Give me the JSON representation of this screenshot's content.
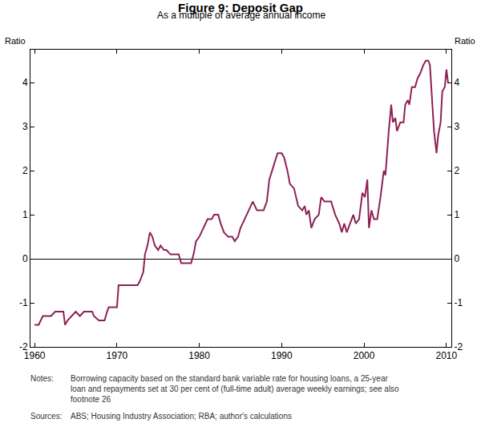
{
  "chart_data": {
    "type": "line",
    "title": "Figure 9: Deposit Gap",
    "subtitle": "As a multiple of average annual income",
    "y_label": "Ratio",
    "y2_label": "Ratio",
    "notes_label": "Notes:",
    "notes": [
      "Borrowing capacity based on the standard bank variable rate for housing loans, a 25-year",
      "loan and repayments set at 30 per cent of (full-time adult) average weekly earnings; see also",
      "footnote 26"
    ],
    "sources_label": "Sources:",
    "sources": "ABS; Housing Industry Association; RBA; author's calculations",
    "x": [
      1960,
      1960.5,
      1961,
      1962,
      1962.5,
      1963.5,
      1963.7,
      1964,
      1964.5,
      1965,
      1965.5,
      1966,
      1967,
      1967.2,
      1967.8,
      1968.5,
      1968.8,
      1969,
      1970,
      1970.2,
      1971,
      1972.5,
      1972.8,
      1973.2,
      1973.4,
      1973.7,
      1974,
      1974.3,
      1974.6,
      1975,
      1975.3,
      1975.7,
      1976,
      1976.5,
      1977.5,
      1977.8,
      1978.5,
      1979,
      1979.3,
      1979.6,
      1980,
      1980.5,
      1981,
      1981.5,
      1981.8,
      1982.3,
      1982.6,
      1983,
      1983.5,
      1984,
      1984.3,
      1984.7,
      1985,
      1985.5,
      1986,
      1986.5,
      1987,
      1987.8,
      1988.2,
      1988.5,
      1989,
      1989.5,
      1990,
      1990.3,
      1990.7,
      1991,
      1991.5,
      1992,
      1992.5,
      1992.8,
      1993,
      1993.3,
      1993.6,
      1994,
      1994.5,
      1994.8,
      1995.2,
      1996,
      1996.5,
      1997,
      1997.3,
      1997.6,
      1997.9,
      1998.3,
      1998.7,
      1999,
      1999.4,
      1999.8,
      2000.1,
      2000.4,
      2000.6,
      2000.9,
      2001.2,
      2001.6,
      2002,
      2002.4,
      2002.6,
      2003,
      2003.3,
      2003.5,
      2003.8,
      2004,
      2004.4,
      2004.8,
      2005,
      2005.3,
      2005.5,
      2005.8,
      2006.2,
      2006.5,
      2006.8,
      2007.2,
      2007.5,
      2007.8,
      2008,
      2008.2,
      2008.5,
      2008.8,
      2009,
      2009.3,
      2009.5,
      2009.8,
      2010,
      2010.2
    ],
    "series": [
      {
        "name": "Deposit Gap",
        "color": "#8e2157",
        "values": [
          -1.5,
          -1.5,
          -1.3,
          -1.3,
          -1.2,
          -1.2,
          -1.5,
          -1.4,
          -1.3,
          -1.2,
          -1.3,
          -1.2,
          -1.2,
          -1.3,
          -1.4,
          -1.4,
          -1.2,
          -1.1,
          -1.1,
          -0.6,
          -0.6,
          -0.6,
          -0.5,
          -0.3,
          0.1,
          0.3,
          0.6,
          0.5,
          0.3,
          0.2,
          0.3,
          0.2,
          0.2,
          0.1,
          0.1,
          -0.1,
          -0.1,
          -0.1,
          0.1,
          0.4,
          0.5,
          0.7,
          0.9,
          0.9,
          1.0,
          1.0,
          0.8,
          0.6,
          0.5,
          0.5,
          0.4,
          0.5,
          0.7,
          0.9,
          1.1,
          1.3,
          1.1,
          1.1,
          1.3,
          1.8,
          2.1,
          2.4,
          2.4,
          2.3,
          2.0,
          1.7,
          1.6,
          1.2,
          1.1,
          1.2,
          1.0,
          1.1,
          0.7,
          0.9,
          1.0,
          1.4,
          1.3,
          1.3,
          1.0,
          0.8,
          0.6,
          0.8,
          0.6,
          0.8,
          1.0,
          0.8,
          0.9,
          1.5,
          1.4,
          1.8,
          0.7,
          1.1,
          0.9,
          0.9,
          1.4,
          2.0,
          1.9,
          2.9,
          3.5,
          3.1,
          3.2,
          2.9,
          3.1,
          3.1,
          3.5,
          3.6,
          3.5,
          3.9,
          3.9,
          4.1,
          4.2,
          4.4,
          4.5,
          4.5,
          4.4,
          3.8,
          2.9,
          2.4,
          2.8,
          3.1,
          3.8,
          3.9,
          4.3,
          4.0
        ]
      }
    ],
    "xlim": [
      1959.5,
      2010.6
    ],
    "xticks": [
      1960,
      1970,
      1980,
      1990,
      2000,
      2010
    ],
    "ylim": [
      -2,
      4.75
    ],
    "yticks": [
      -2,
      -1,
      0,
      1,
      2,
      3,
      4
    ],
    "y2lim": [
      -2,
      4.75
    ],
    "y2ticks": [
      -2,
      -1,
      0,
      1,
      2,
      3,
      4
    ],
    "grid": false
  }
}
